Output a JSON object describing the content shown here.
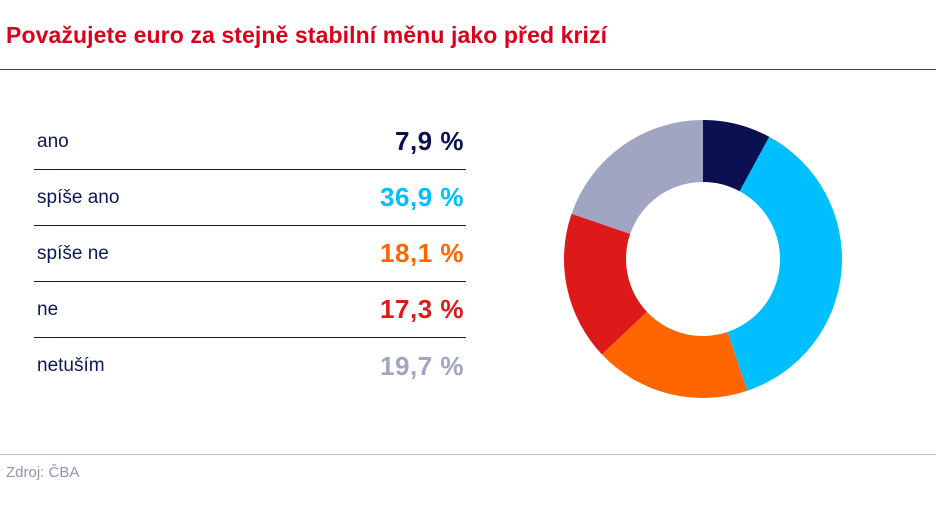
{
  "title": "Považujete euro za stejně stabilní měnu jako před krizí",
  "source": "Zdroj: ČBA",
  "chart_data": {
    "type": "pie",
    "variant": "donut",
    "title": "Považujete euro za stejně stabilní měnu jako před krizí",
    "unit": "%",
    "categories": [
      "ano",
      "spíše ano",
      "spíše ne",
      "ne",
      "netuším"
    ],
    "values": [
      7.9,
      36.9,
      18.1,
      17.3,
      19.7
    ],
    "value_labels": [
      "7,9 %",
      "36,9 %",
      "18,1 %",
      "17,3 %",
      "19,7 %"
    ],
    "colors": [
      "#0b1150",
      "#00bfff",
      "#ff6600",
      "#dc1a1a",
      "#a0a6c2"
    ],
    "legend_position": "left"
  }
}
